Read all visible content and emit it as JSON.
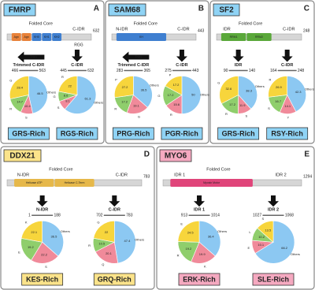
{
  "panels": [
    {
      "letter": "A",
      "protein": "FMRP",
      "color": "#8fd3f5",
      "core": "Folded Core",
      "regions": [
        "C-IDR"
      ],
      "length": 632,
      "extra": "RGG",
      "domains": [
        "Agn",
        "Agn",
        "KH0",
        "KH1",
        "KH2"
      ],
      "domain_colors": [
        "#e8823a",
        "#e8823a",
        "#3f7fd0",
        "#3f7fd0",
        "#3f7fd0"
      ],
      "trim": "Trim"
    },
    {
      "letter": "B",
      "protein": "SAM68",
      "color": "#8fd3f5",
      "core": "Folded Core",
      "regions": [
        "N-IDR",
        "C-IDR"
      ],
      "length": 443,
      "domains": [
        "KH"
      ],
      "domain_colors": [
        "#3f7fd0"
      ],
      "trim": "Trim"
    },
    {
      "letter": "C",
      "protein": "SF2",
      "color": "#8fd3f5",
      "core": "Folded Core",
      "regions": [
        "IDR",
        "C-IDR"
      ],
      "length": 248,
      "domains": [
        "RRM1",
        "RRM2"
      ],
      "domain_colors": [
        "#5aa83a",
        "#5aa83a"
      ]
    },
    {
      "letter": "D",
      "protein": "DDX21",
      "color": "#fbe38a",
      "core": "Folded Core",
      "regions": [
        "N-IDR",
        "C-IDR"
      ],
      "length": 783,
      "domains": [
        "Helicase ATP",
        "Helicase C-Term"
      ],
      "domain_colors": [
        "#e6b84a",
        "#e6b84a"
      ]
    },
    {
      "letter": "E",
      "protein": "MYO6",
      "color": "#f5a9c0",
      "core": "Folded Core",
      "regions": [
        "IDR 1",
        "IDR 2"
      ],
      "length": 1294,
      "domains": [
        "Myosin Motor"
      ],
      "domain_colors": [
        "#e0457a"
      ]
    }
  ],
  "chart_data": [
    {
      "type": "pie",
      "title": "GRS-Rich",
      "title_color": "#8fd3f5",
      "region": "Trimmed C-IDR",
      "start": 466,
      "end": 563,
      "categories": [
        "Others",
        "S",
        "R",
        "G"
      ],
      "values": [
        46.5,
        10.4,
        14.7,
        28.4
      ],
      "colors": [
        "#8cc8f2",
        "#f08a9a",
        "#8fce6c",
        "#f7d53c"
      ]
    },
    {
      "type": "pie",
      "title": "RGS-Rich",
      "title_color": "#8fd3f5",
      "region": "C-IDR",
      "start": 445,
      "end": 632,
      "categories": [
        "Others",
        "S",
        "G",
        "R"
      ],
      "values": [
        61.3,
        8.1,
        8.6,
        22.0
      ],
      "colors": [
        "#8cc8f2",
        "#f08a9a",
        "#8fce6c",
        "#f7d53c"
      ]
    },
    {
      "type": "pie",
      "title": "PRG-Rich",
      "title_color": "#8fd3f5",
      "region": "Trimmed C-IDR",
      "start": 283,
      "end": 365,
      "categories": [
        "Others",
        "G",
        "R",
        "P"
      ],
      "values": [
        36.5,
        19.1,
        17.2,
        27.2
      ],
      "colors": [
        "#8cc8f2",
        "#f08a9a",
        "#8fce6c",
        "#f7d53c"
      ]
    },
    {
      "type": "pie",
      "title": "PGR-Rich",
      "title_color": "#8fd3f5",
      "region": "C-IDR",
      "start": 275,
      "end": 443,
      "categories": [
        "Others",
        "R",
        "G",
        "P"
      ],
      "values": [
        50,
        15.6,
        17.2,
        17.2
      ],
      "colors": [
        "#8cc8f2",
        "#f08a9a",
        "#8fce6c",
        "#f7d53c"
      ]
    },
    {
      "type": "pie",
      "title": "GRS-Rich",
      "title_color": "#8fd3f5",
      "region": "IDR",
      "start": 90,
      "end": 140,
      "categories": [
        "Others",
        "S",
        "R",
        "G"
      ],
      "values": [
        38.3,
        11.9,
        17.2,
        32.6
      ],
      "colors": [
        "#8cc8f2",
        "#f08a9a",
        "#8fce6c",
        "#f7d53c"
      ]
    },
    {
      "type": "pie",
      "title": "RSY-Rich",
      "title_color": "#8fd3f5",
      "region": "C-IDR",
      "start": 164,
      "end": 248,
      "categories": [
        "Others",
        "Y",
        "S",
        "R"
      ],
      "values": [
        42.3,
        14.1,
        16.7,
        26.9
      ],
      "colors": [
        "#8cc8f2",
        "#f08a9a",
        "#8fce6c",
        "#f7d53c"
      ]
    },
    {
      "type": "pie",
      "title": "KES-Rich",
      "title_color": "#fbe38a",
      "region": "N-IDR",
      "start": 1,
      "end": 188,
      "categories": [
        "Others",
        "S",
        "E",
        "K"
      ],
      "values": [
        36.5,
        22.2,
        19.2,
        22.1
      ],
      "colors": [
        "#8cc8f2",
        "#f08a9a",
        "#8fce6c",
        "#f7d53c"
      ]
    },
    {
      "type": "pie",
      "title": "GRQ-Rich",
      "title_color": "#fbe38a",
      "region": "C-IDR",
      "start": 702,
      "end": 783,
      "categories": [
        "Others",
        "Q",
        "R",
        "G"
      ],
      "values": [
        47.4,
        20.1,
        10.5,
        22.0
      ],
      "colors": [
        "#8cc8f2",
        "#f08a9a",
        "#8fce6c",
        "#f7d53c"
      ]
    },
    {
      "type": "pie",
      "title": "ERK-Rich",
      "title_color": "#f5a9c0",
      "region": "IDR 1",
      "start": 913,
      "end": 1014,
      "categories": [
        "Others",
        "K",
        "R",
        "E"
      ],
      "values": [
        36.4,
        19.9,
        19.2,
        24.5
      ],
      "colors": [
        "#8cc8f2",
        "#f08a9a",
        "#8fce6c",
        "#f7d53c"
      ]
    },
    {
      "type": "pie",
      "title": "SLE-Rich",
      "title_color": "#f5a9c0",
      "region": "IDR 2",
      "start": 1027,
      "end": 1068,
      "categories": [
        "Others",
        "E",
        "L",
        "S"
      ],
      "values": [
        66.2,
        10.1,
        10.2,
        13.5
      ],
      "colors": [
        "#8cc8f2",
        "#f08a9a",
        "#8fce6c",
        "#f7d53c"
      ]
    }
  ]
}
